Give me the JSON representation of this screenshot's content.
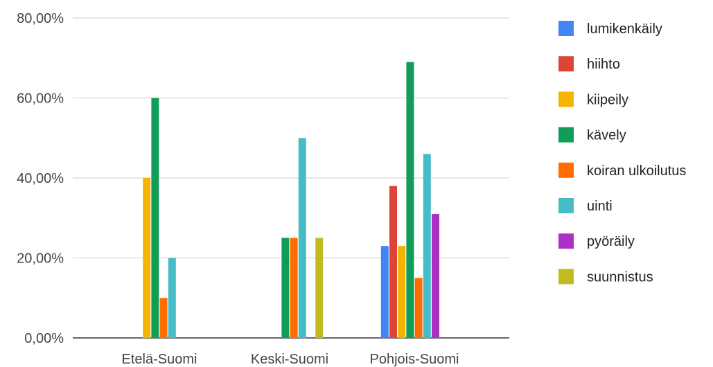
{
  "chart_data": {
    "type": "bar",
    "title": "",
    "xlabel": "",
    "ylabel": "",
    "ylim": [
      0,
      0.8
    ],
    "y_ticks": [
      "0,00%",
      "20,00%",
      "40,00%",
      "60,00%",
      "80,00%"
    ],
    "y_tick_values": [
      0,
      0.2,
      0.4,
      0.6,
      0.8
    ],
    "grid": true,
    "legend_position": "right",
    "categories": [
      "Etelä-Suomi",
      "Keski-Suomi",
      "Pohjois-Suomi"
    ],
    "series": [
      {
        "name": "lumikenkäily",
        "color": "#4285F4",
        "values": [
          null,
          null,
          0.23
        ]
      },
      {
        "name": "hiihto",
        "color": "#DB4437",
        "values": [
          null,
          null,
          0.38
        ]
      },
      {
        "name": "kiipeily",
        "color": "#F4B400",
        "values": [
          0.4,
          null,
          0.23
        ]
      },
      {
        "name": "kävely",
        "color": "#0F9D58",
        "values": [
          0.6,
          0.25,
          0.69
        ]
      },
      {
        "name": "koiran ulkoilutus",
        "color": "#FF6D01",
        "values": [
          0.1,
          0.25,
          0.15
        ]
      },
      {
        "name": "uinti",
        "color": "#46BDC6",
        "values": [
          0.2,
          0.5,
          0.46
        ]
      },
      {
        "name": "pyöräily",
        "color": "#AB30C4",
        "values": [
          null,
          null,
          0.31
        ]
      },
      {
        "name": "suunnistus",
        "color": "#C2BA1F",
        "values": [
          null,
          0.25,
          null
        ]
      }
    ]
  }
}
